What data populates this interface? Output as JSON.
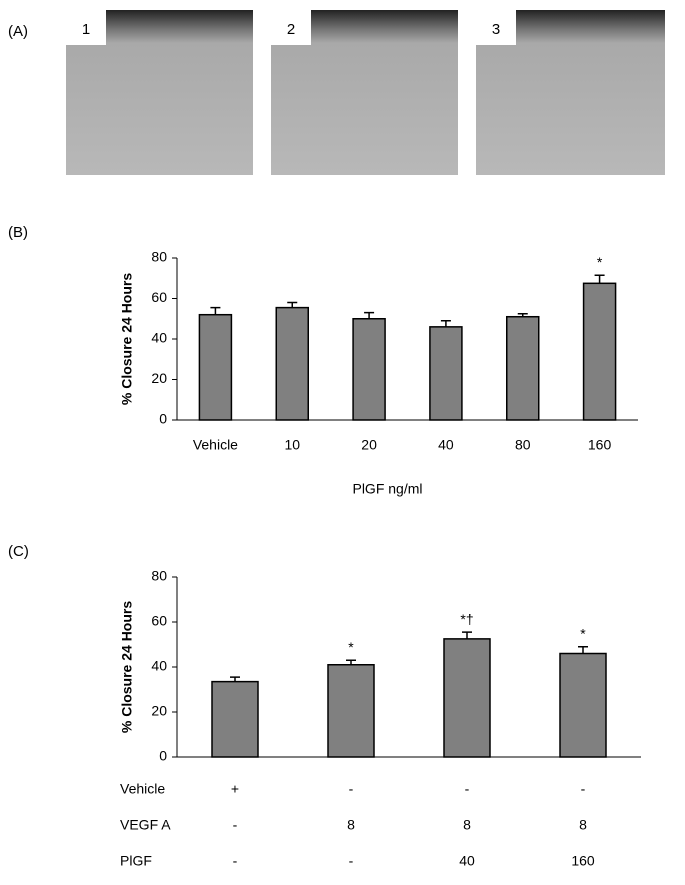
{
  "panels": {
    "labels": [
      "(A)",
      "(B)",
      "(C)"
    ],
    "images": [
      "1",
      "2",
      "3"
    ]
  },
  "chart_data": [
    {
      "type": "bar",
      "categories": [
        "Vehicle",
        "10",
        "20",
        "40",
        "80",
        "160"
      ],
      "values": [
        52,
        55.5,
        50,
        46,
        51,
        67.5
      ],
      "errors": [
        3.5,
        2.5,
        3,
        3,
        1.5,
        4
      ],
      "annotations": [
        null,
        null,
        null,
        null,
        null,
        "*"
      ],
      "y_label": "% Closure 24 Hours",
      "x_label": "PlGF ng/ml",
      "ylim": [
        0,
        80
      ],
      "yticks": [
        0,
        20,
        40,
        60,
        80
      ],
      "color": "#808080"
    },
    {
      "type": "bar",
      "categories": [
        null,
        null,
        null,
        null
      ],
      "values": [
        33.5,
        41,
        52.5,
        46
      ],
      "errors": [
        2,
        2,
        3,
        3
      ],
      "annotations": [
        null,
        "*",
        "*†",
        "*"
      ],
      "y_label": "% Closure 24 Hours",
      "ylim": [
        0,
        80
      ],
      "yticks": [
        0,
        20,
        40,
        60,
        80
      ],
      "color": "#808080",
      "table": {
        "rows": [
          [
            "Vehicle",
            "+",
            "-",
            "-",
            "-"
          ],
          [
            "VEGF A",
            "-",
            8,
            8,
            8
          ],
          [
            "PlGF",
            "-",
            "-",
            40,
            160
          ]
        ]
      }
    }
  ]
}
